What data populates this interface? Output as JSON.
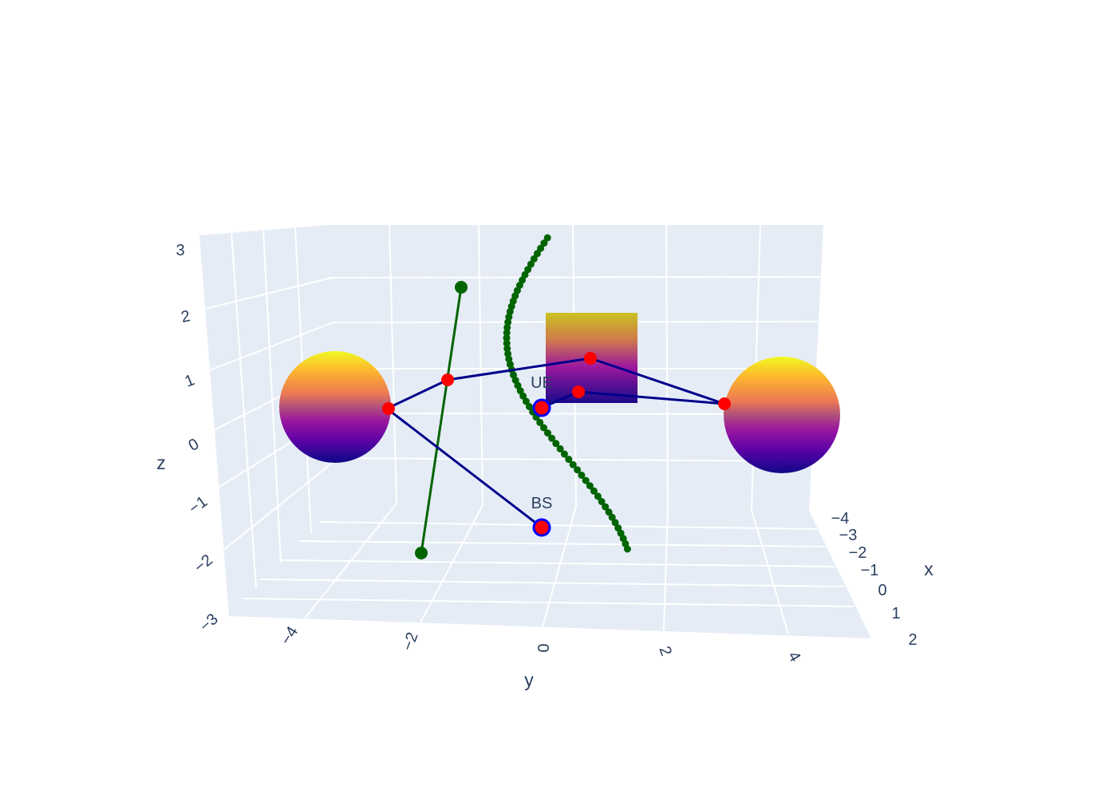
{
  "chart_data": {
    "type": "scatter3d",
    "title": "",
    "axes": {
      "x": {
        "title": "x",
        "ticks": [
          "−4",
          "−3",
          "−2",
          "−1",
          "0",
          "1",
          "2"
        ]
      },
      "y": {
        "title": "y",
        "ticks": [
          "−4",
          "−2",
          "0",
          "2",
          "4"
        ]
      },
      "z": {
        "title": "z",
        "ticks": [
          "3",
          "2",
          "1",
          "0",
          "−1",
          "−2",
          "−3"
        ]
      }
    },
    "background_color": "#e5ecf6",
    "colorscale": [
      "#0d0887",
      "#5c01a6",
      "#9c179e",
      "#cc4778",
      "#ed7953",
      "#fdb42f",
      "#f0f921"
    ],
    "points": {
      "UE": {
        "label": "UE",
        "x": 0,
        "y": 0,
        "z": 0
      },
      "BS": {
        "label": "BS",
        "x": 0,
        "y": 0,
        "z": -1.5
      }
    },
    "objects": [
      "sphere-left",
      "sphere-right",
      "box-center"
    ],
    "colors": {
      "ray": "#00008b",
      "reflection": "#ff0000",
      "marker_outline": "#0000ff",
      "trajectory": "#006400",
      "grid": "#ffffff"
    }
  }
}
